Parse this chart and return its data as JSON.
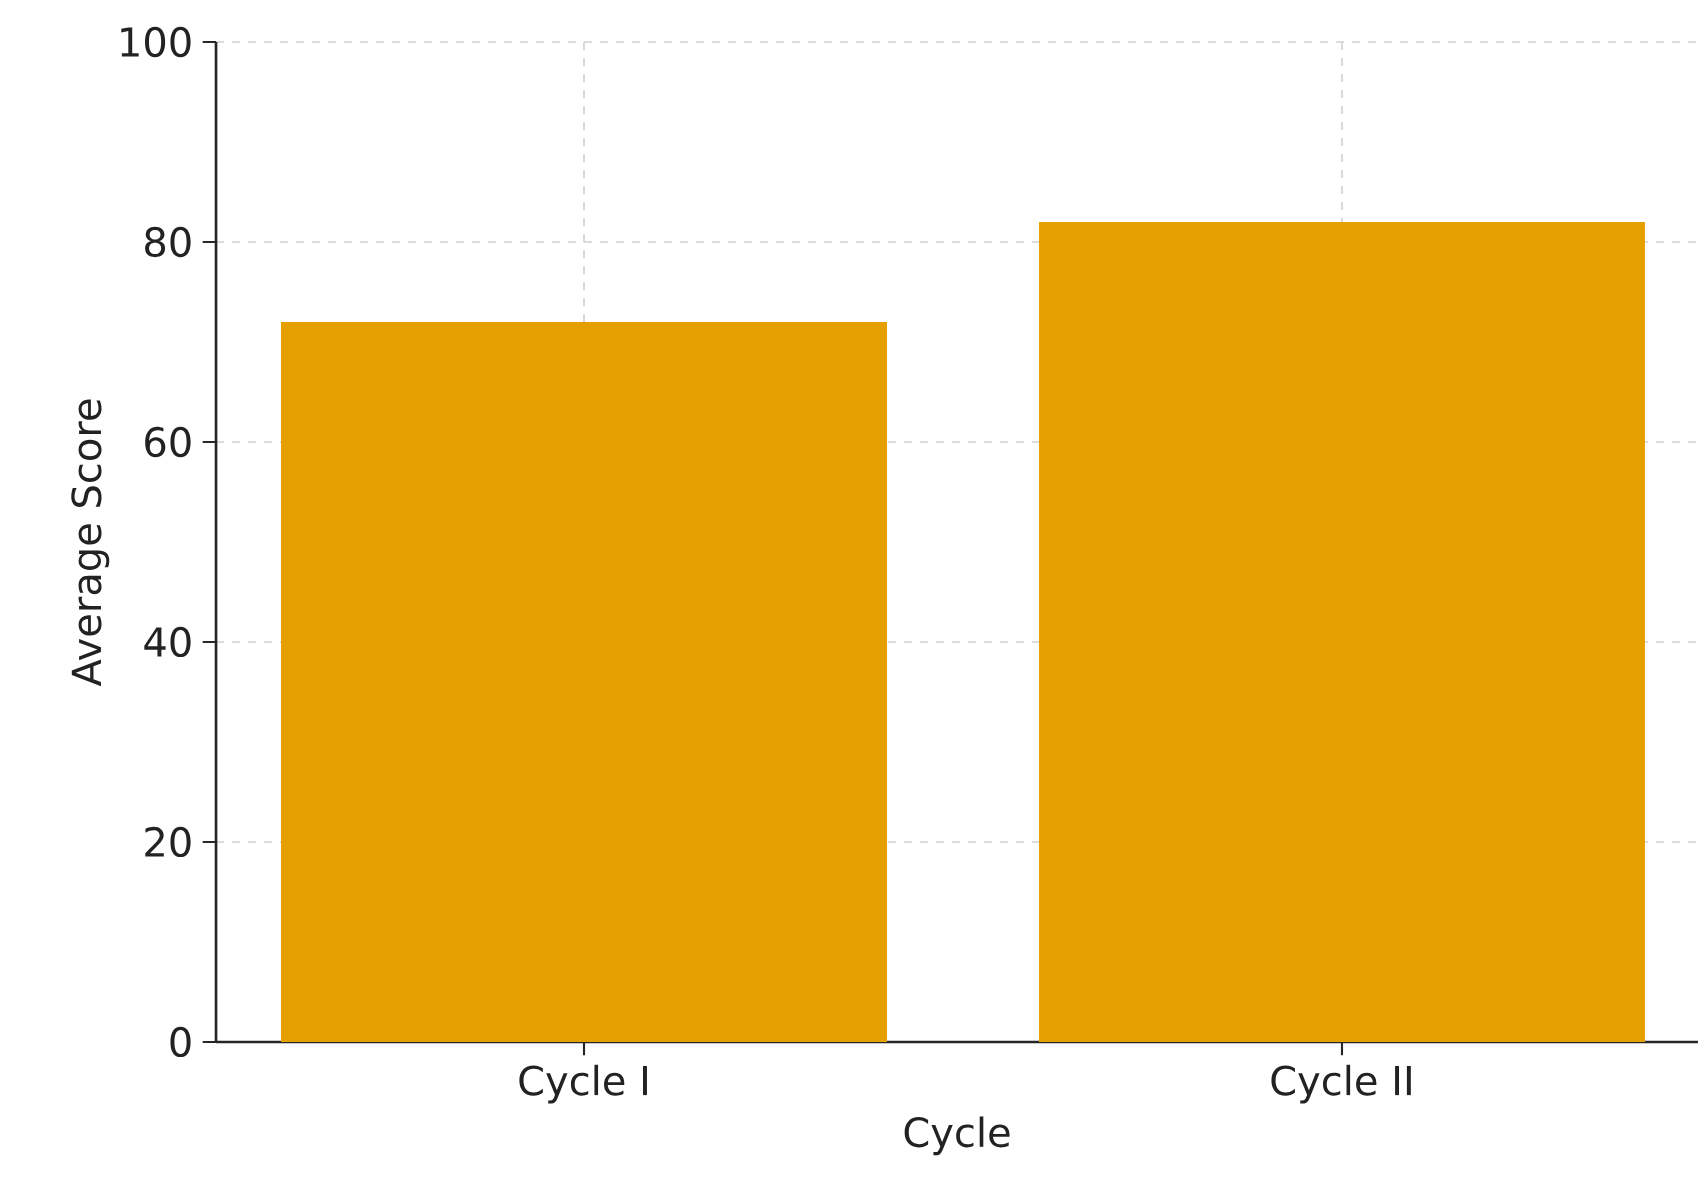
{
  "chart_data": {
    "type": "bar",
    "xlabel": "Cycle",
    "ylabel": "Average Score",
    "categories": [
      "Cycle I",
      "Cycle II"
    ],
    "values": [
      72,
      82
    ],
    "color": "#e69f00",
    "ylim": [
      0,
      100
    ],
    "yticks": [
      0,
      20,
      40,
      60,
      80,
      100
    ],
    "grid": true
  }
}
